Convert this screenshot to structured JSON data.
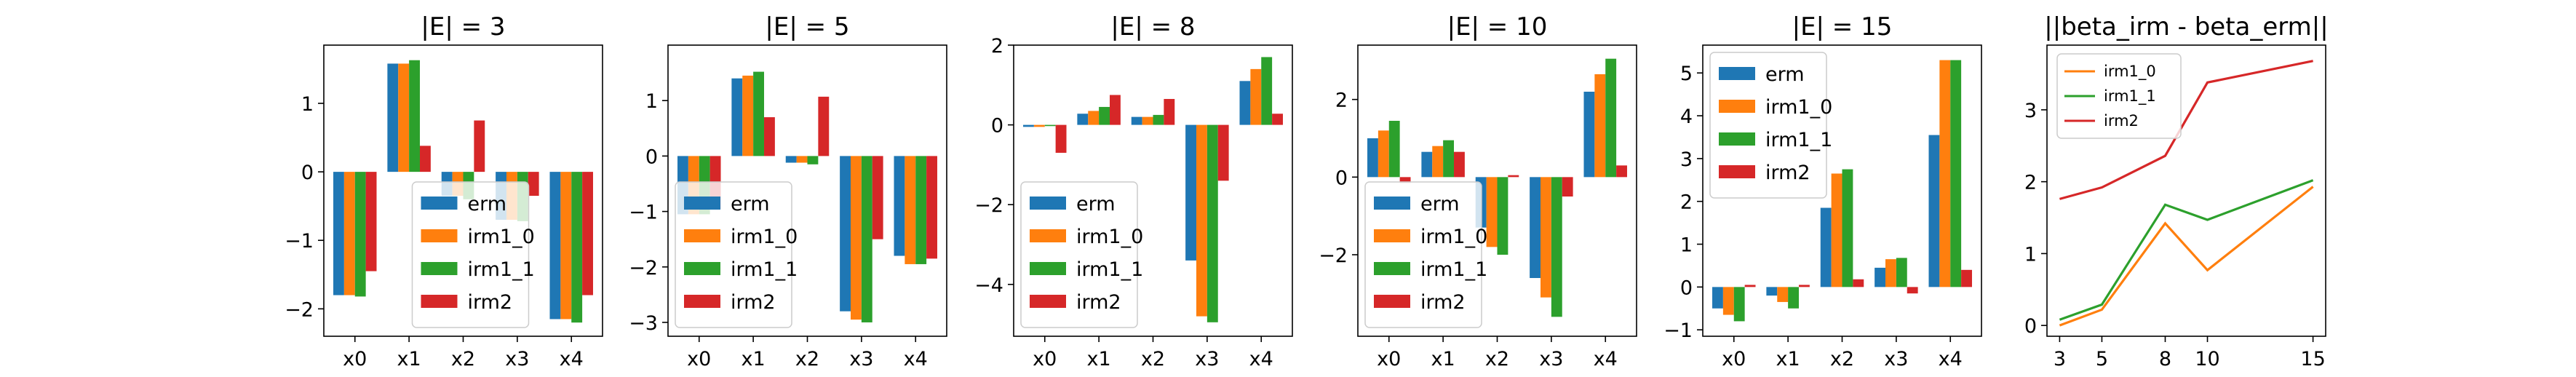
{
  "colors": {
    "erm": "#1f77b4",
    "irm1_0": "#ff7f0e",
    "irm1_1": "#2ca02c",
    "irm2": "#d62728"
  },
  "chart_data": [
    {
      "type": "bar",
      "title": "|E| = 3",
      "categories": [
        "x0",
        "x1",
        "x2",
        "x3",
        "x4"
      ],
      "ylim": [
        -2.4,
        1.85
      ],
      "yticks": [
        -2,
        -1,
        0,
        1
      ],
      "legend": "lower-center",
      "series": [
        {
          "name": "erm",
          "values": [
            -1.8,
            1.58,
            -0.35,
            -0.7,
            -2.15
          ]
        },
        {
          "name": "irm1_0",
          "values": [
            -1.8,
            1.58,
            -0.35,
            -0.7,
            -2.15
          ]
        },
        {
          "name": "irm1_1",
          "values": [
            -1.82,
            1.63,
            -0.4,
            -0.72,
            -2.2
          ]
        },
        {
          "name": "irm2",
          "values": [
            -1.45,
            0.38,
            0.75,
            -0.35,
            -1.8
          ]
        }
      ]
    },
    {
      "type": "bar",
      "title": "|E| = 5",
      "categories": [
        "x0",
        "x1",
        "x2",
        "x3",
        "x4"
      ],
      "ylim": [
        -3.25,
        2.0
      ],
      "yticks": [
        -3,
        -2,
        -1,
        0,
        1
      ],
      "legend": "lower-left",
      "series": [
        {
          "name": "erm",
          "values": [
            -1.05,
            1.4,
            -0.12,
            -2.8,
            -1.8
          ]
        },
        {
          "name": "irm1_0",
          "values": [
            -1.05,
            1.45,
            -0.12,
            -2.95,
            -1.95
          ]
        },
        {
          "name": "irm1_1",
          "values": [
            -1.05,
            1.52,
            -0.15,
            -3.0,
            -1.95
          ]
        },
        {
          "name": "irm2",
          "values": [
            -0.95,
            0.7,
            1.07,
            -1.5,
            -1.85
          ]
        }
      ]
    },
    {
      "type": "bar",
      "title": "|E| = 8",
      "categories": [
        "x0",
        "x1",
        "x2",
        "x3",
        "x4"
      ],
      "ylim": [
        -5.3,
        2.0
      ],
      "yticks": [
        -4,
        -2,
        0,
        2
      ],
      "legend": "lower-left",
      "series": [
        {
          "name": "erm",
          "values": [
            -0.05,
            0.28,
            0.2,
            -3.4,
            1.1
          ]
        },
        {
          "name": "irm1_0",
          "values": [
            -0.05,
            0.35,
            0.2,
            -4.8,
            1.4
          ]
        },
        {
          "name": "irm1_1",
          "values": [
            -0.03,
            0.45,
            0.25,
            -4.95,
            1.7
          ]
        },
        {
          "name": "irm2",
          "values": [
            -0.7,
            0.75,
            0.65,
            -1.4,
            0.28
          ]
        }
      ]
    },
    {
      "type": "bar",
      "title": "|E| = 10",
      "categories": [
        "x0",
        "x1",
        "x2",
        "x3",
        "x4"
      ],
      "ylim": [
        -4.1,
        3.4
      ],
      "yticks": [
        -2,
        0,
        2
      ],
      "legend": "lower-left",
      "series": [
        {
          "name": "erm",
          "values": [
            1.0,
            0.65,
            -1.3,
            -2.6,
            2.2
          ]
        },
        {
          "name": "irm1_0",
          "values": [
            1.2,
            0.8,
            -1.8,
            -3.1,
            2.65
          ]
        },
        {
          "name": "irm1_1",
          "values": [
            1.45,
            0.95,
            -2.0,
            -3.6,
            3.05
          ]
        },
        {
          "name": "irm2",
          "values": [
            -0.15,
            0.65,
            0.05,
            -0.5,
            0.3
          ]
        }
      ]
    },
    {
      "type": "bar",
      "title": "|E| = 15",
      "categories": [
        "x0",
        "x1",
        "x2",
        "x3",
        "x4"
      ],
      "ylim": [
        -1.15,
        5.65
      ],
      "yticks": [
        -1,
        0,
        1,
        2,
        3,
        4,
        5
      ],
      "legend": "upper-left",
      "series": [
        {
          "name": "erm",
          "values": [
            -0.5,
            -0.2,
            1.85,
            0.45,
            3.55
          ]
        },
        {
          "name": "irm1_0",
          "values": [
            -0.65,
            -0.35,
            2.65,
            0.65,
            5.3
          ]
        },
        {
          "name": "irm1_1",
          "values": [
            -0.8,
            -0.5,
            2.75,
            0.68,
            5.3
          ]
        },
        {
          "name": "irm2",
          "values": [
            0.05,
            0.05,
            0.18,
            -0.15,
            0.4
          ]
        }
      ]
    },
    {
      "type": "line",
      "title": "||beta_irm - beta_erm||",
      "x": [
        3,
        5,
        8,
        10,
        15
      ],
      "xticks": [
        3,
        5,
        8,
        10,
        15
      ],
      "ylim": [
        -0.15,
        3.9
      ],
      "yticks": [
        0,
        1,
        2,
        3
      ],
      "legend": "upper-left",
      "series": [
        {
          "name": "irm1_0",
          "values": [
            0.0,
            0.22,
            1.42,
            0.77,
            1.93
          ]
        },
        {
          "name": "irm1_1",
          "values": [
            0.08,
            0.29,
            1.68,
            1.47,
            2.02
          ]
        },
        {
          "name": "irm2",
          "values": [
            1.76,
            1.92,
            2.36,
            3.38,
            3.68
          ]
        }
      ]
    }
  ]
}
